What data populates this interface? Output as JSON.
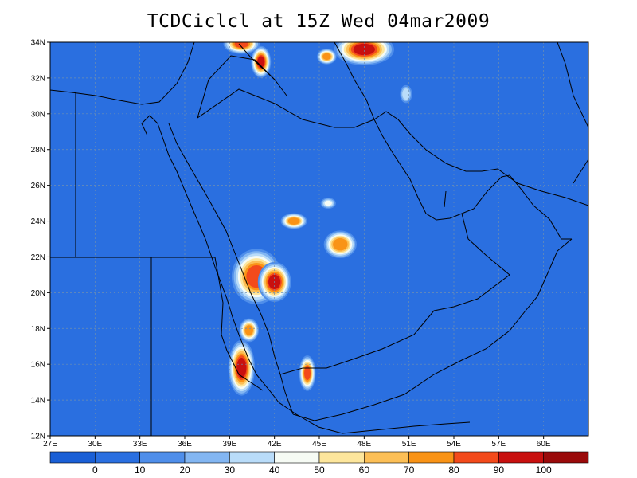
{
  "title": "TCDCiclcl at 15Z Wed 04mar2009",
  "map": {
    "lon_range": [
      27,
      63
    ],
    "lat_range": [
      12,
      34
    ],
    "lon_ticks": [
      {
        "v": 27,
        "label": "27E"
      },
      {
        "v": 30,
        "label": "30E"
      },
      {
        "v": 33,
        "label": "33E"
      },
      {
        "v": 36,
        "label": "36E"
      },
      {
        "v": 39,
        "label": "39E"
      },
      {
        "v": 42,
        "label": "42E"
      },
      {
        "v": 45,
        "label": "45E"
      },
      {
        "v": 48,
        "label": "48E"
      },
      {
        "v": 51,
        "label": "51E"
      },
      {
        "v": 54,
        "label": "54E"
      },
      {
        "v": 57,
        "label": "57E"
      },
      {
        "v": 60,
        "label": "60E"
      }
    ],
    "lat_ticks": [
      {
        "v": 12,
        "label": "12N"
      },
      {
        "v": 14,
        "label": "14N"
      },
      {
        "v": 16,
        "label": "16N"
      },
      {
        "v": 18,
        "label": "18N"
      },
      {
        "v": 20,
        "label": "20N"
      },
      {
        "v": 22,
        "label": "22N"
      },
      {
        "v": 24,
        "label": "24N"
      },
      {
        "v": 26,
        "label": "26N"
      },
      {
        "v": 28,
        "label": "28N"
      },
      {
        "v": 30,
        "label": "30N"
      },
      {
        "v": 32,
        "label": "32N"
      },
      {
        "v": 34,
        "label": "34N"
      }
    ],
    "background_color": "#2a6fe0",
    "cloud_features": [
      {
        "lon": 40.8,
        "lat": 20.9,
        "peak": 95,
        "rx": 1.5,
        "ry": 1.4
      },
      {
        "lon": 42.0,
        "lat": 20.6,
        "peak": 100,
        "rx": 1.0,
        "ry": 1.0
      },
      {
        "lon": 39.8,
        "lat": 15.8,
        "peak": 100,
        "rx": 0.8,
        "ry": 1.4
      },
      {
        "lon": 40.3,
        "lat": 17.9,
        "peak": 85,
        "rx": 0.6,
        "ry": 0.6
      },
      {
        "lon": 44.2,
        "lat": 15.5,
        "peak": 92,
        "rx": 0.5,
        "ry": 0.9
      },
      {
        "lon": 46.4,
        "lat": 22.7,
        "peak": 88,
        "rx": 1.0,
        "ry": 0.7
      },
      {
        "lon": 43.3,
        "lat": 24.0,
        "peak": 88,
        "rx": 0.8,
        "ry": 0.4
      },
      {
        "lon": 45.6,
        "lat": 25.0,
        "peak": 52,
        "rx": 0.5,
        "ry": 0.3
      },
      {
        "lon": 48.0,
        "lat": 33.6,
        "peak": 100,
        "rx": 1.8,
        "ry": 0.8
      },
      {
        "lon": 45.5,
        "lat": 33.2,
        "peak": 85,
        "rx": 0.6,
        "ry": 0.4
      },
      {
        "lon": 39.8,
        "lat": 33.9,
        "peak": 92,
        "rx": 1.1,
        "ry": 0.5
      },
      {
        "lon": 41.1,
        "lat": 32.9,
        "peak": 100,
        "rx": 0.6,
        "ry": 0.8
      },
      {
        "lon": 50.8,
        "lat": 31.1,
        "peak": 48,
        "rx": 0.4,
        "ry": 0.5
      }
    ]
  },
  "colorbar": {
    "colors": [
      "#1a5fd6",
      "#2a6fe0",
      "#4f8eea",
      "#83b6f2",
      "#b9dcf9",
      "#f6fbf4",
      "#fde69c",
      "#fcbf56",
      "#f99316",
      "#f34a1b",
      "#c8100f",
      "#9a0a0a"
    ],
    "labels": [
      "0",
      "10",
      "20",
      "30",
      "40",
      "50",
      "60",
      "70",
      "80",
      "90",
      "100"
    ]
  }
}
